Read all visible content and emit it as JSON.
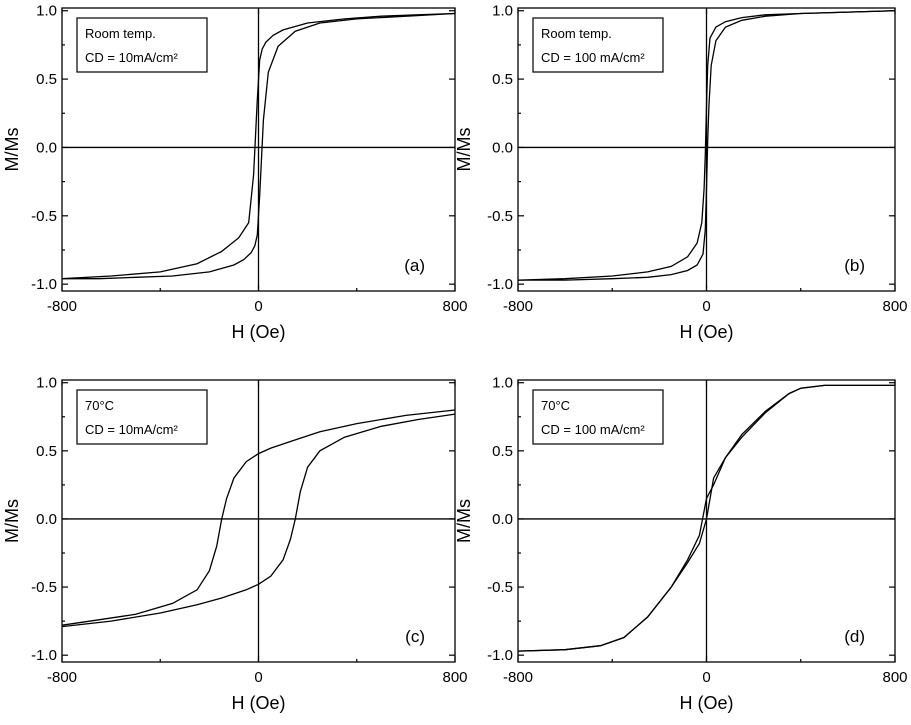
{
  "chart_data": [
    {
      "type": "line",
      "panel_label": "(a)",
      "legend_lines": [
        "Room temp.",
        "CD = 10mA/cm²"
      ],
      "xlabel": "H (Oe)",
      "ylabel": "M/Ms",
      "xlim": [
        -800,
        800
      ],
      "ylim": [
        -1.05,
        1.02
      ],
      "xticks": [
        -800,
        0,
        800
      ],
      "yticks": [
        -1.0,
        -0.5,
        0.0,
        0.5,
        1.0
      ],
      "ytick_labels": [
        "-1.0",
        "-0.5",
        "0.0",
        "0.5",
        "1.0"
      ],
      "legend_position": "top-left",
      "grid": false,
      "series": [
        {
          "x": [
            -800,
            -600,
            -400,
            -250,
            -150,
            -80,
            -40,
            -20,
            -5,
            5,
            15,
            30,
            60,
            100,
            200,
            350,
            500,
            650,
            800
          ],
          "y": [
            -0.96,
            -0.94,
            -0.91,
            -0.85,
            -0.76,
            -0.66,
            -0.55,
            -0.2,
            0.35,
            0.64,
            0.72,
            0.77,
            0.82,
            0.86,
            0.91,
            0.94,
            0.96,
            0.97,
            0.98
          ]
        },
        {
          "x": [
            800,
            600,
            400,
            250,
            150,
            80,
            40,
            20,
            5,
            -5,
            -15,
            -30,
            -60,
            -100,
            -200,
            -350,
            -500,
            -650,
            -800
          ],
          "y": [
            0.98,
            0.96,
            0.94,
            0.91,
            0.85,
            0.74,
            0.55,
            0.2,
            -0.35,
            -0.64,
            -0.72,
            -0.77,
            -0.82,
            -0.86,
            -0.91,
            -0.94,
            -0.95,
            -0.96,
            -0.96
          ]
        }
      ]
    },
    {
      "type": "line",
      "panel_label": "(b)",
      "legend_lines": [
        "Room temp.",
        "CD = 100 mA/cm²"
      ],
      "xlabel": "H (Oe)",
      "ylabel": "M/Ms",
      "xlim": [
        -800,
        800
      ],
      "ylim": [
        -1.05,
        1.02
      ],
      "xticks": [
        -800,
        0,
        800
      ],
      "yticks": [
        -1.0,
        -0.5,
        0.0,
        0.5,
        1.0
      ],
      "ytick_labels": [
        "-1.0",
        "-0.5",
        "0.0",
        "0.5",
        "1.0"
      ],
      "legend_position": "top-left",
      "grid": false,
      "series": [
        {
          "x": [
            -800,
            -600,
            -400,
            -250,
            -150,
            -80,
            -40,
            -20,
            -10,
            -5,
            0,
            5,
            15,
            40,
            80,
            150,
            250,
            400,
            600,
            800
          ],
          "y": [
            -0.97,
            -0.96,
            -0.94,
            -0.91,
            -0.87,
            -0.8,
            -0.7,
            -0.55,
            -0.3,
            -0.05,
            0.3,
            0.6,
            0.8,
            0.88,
            0.92,
            0.95,
            0.97,
            0.98,
            0.99,
            1.0
          ]
        },
        {
          "x": [
            800,
            600,
            400,
            250,
            150,
            80,
            40,
            20,
            10,
            5,
            0,
            -5,
            -15,
            -40,
            -80,
            -150,
            -250,
            -400,
            -600,
            -800
          ],
          "y": [
            1.0,
            0.99,
            0.98,
            0.96,
            0.93,
            0.88,
            0.78,
            0.6,
            0.3,
            0.05,
            -0.3,
            -0.6,
            -0.78,
            -0.86,
            -0.9,
            -0.93,
            -0.95,
            -0.96,
            -0.97,
            -0.97
          ]
        }
      ]
    },
    {
      "type": "line",
      "panel_label": "(c)",
      "legend_lines": [
        "70°C",
        "CD = 10mA/cm²"
      ],
      "xlabel": "H (Oe)",
      "ylabel": "M/Ms",
      "xlim": [
        -800,
        800
      ],
      "ylim": [
        -1.05,
        1.02
      ],
      "xticks": [
        -800,
        0,
        800
      ],
      "yticks": [
        -1.0,
        -0.5,
        0.0,
        0.5,
        1.0
      ],
      "ytick_labels": [
        "-1.0",
        "-0.5",
        "0.0",
        "0.5",
        "1.0"
      ],
      "legend_position": "top-left",
      "grid": false,
      "series": [
        {
          "x": [
            -800,
            -600,
            -400,
            -250,
            -150,
            -50,
            0,
            50,
            100,
            130,
            150,
            170,
            200,
            250,
            350,
            500,
            650,
            800
          ],
          "y": [
            -0.79,
            -0.75,
            -0.69,
            -0.63,
            -0.58,
            -0.52,
            -0.48,
            -0.42,
            -0.3,
            -0.15,
            0.0,
            0.2,
            0.38,
            0.5,
            0.6,
            0.68,
            0.73,
            0.77
          ]
        },
        {
          "x": [
            800,
            600,
            400,
            250,
            150,
            50,
            0,
            -50,
            -100,
            -130,
            -150,
            -170,
            -200,
            -250,
            -350,
            -500,
            -650,
            -800
          ],
          "y": [
            0.8,
            0.76,
            0.7,
            0.64,
            0.58,
            0.52,
            0.48,
            0.42,
            0.3,
            0.15,
            0.0,
            -0.2,
            -0.38,
            -0.52,
            -0.62,
            -0.7,
            -0.74,
            -0.78
          ]
        }
      ]
    },
    {
      "type": "line",
      "panel_label": "(d)",
      "legend_lines": [
        "70°C",
        "CD = 100 mA/cm²"
      ],
      "xlabel": "H (Oe)",
      "ylabel": "M/Ms",
      "xlim": [
        -800,
        800
      ],
      "ylim": [
        -1.05,
        1.02
      ],
      "xticks": [
        -800,
        0,
        800
      ],
      "yticks": [
        -1.0,
        -0.5,
        0.0,
        0.5,
        1.0
      ],
      "ytick_labels": [
        "-1.0",
        "-0.5",
        "0.0",
        "0.5",
        "1.0"
      ],
      "legend_position": "top-left",
      "grid": false,
      "series": [
        {
          "x": [
            -800,
            -600,
            -450,
            -350,
            -250,
            -150,
            -80,
            -30,
            0,
            30,
            80,
            150,
            250,
            350,
            400,
            500,
            650,
            800
          ],
          "y": [
            -0.97,
            -0.96,
            -0.93,
            -0.87,
            -0.72,
            -0.5,
            -0.32,
            -0.18,
            0.0,
            0.3,
            0.45,
            0.6,
            0.78,
            0.92,
            0.96,
            0.98,
            0.98,
            0.98
          ]
        },
        {
          "x": [
            800,
            650,
            500,
            400,
            350,
            250,
            150,
            80,
            30,
            0,
            -30,
            -80,
            -150,
            -250,
            -350,
            -450,
            -600,
            -800
          ],
          "y": [
            0.98,
            0.98,
            0.98,
            0.96,
            0.92,
            0.79,
            0.62,
            0.45,
            0.25,
            0.15,
            -0.12,
            -0.3,
            -0.5,
            -0.72,
            -0.87,
            -0.93,
            -0.96,
            -0.97
          ]
        }
      ]
    }
  ]
}
